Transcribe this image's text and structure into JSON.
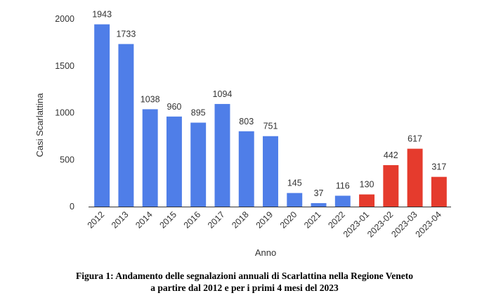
{
  "chart_data": {
    "type": "bar",
    "categories": [
      "2012",
      "2013",
      "2014",
      "2015",
      "2016",
      "2017",
      "2018",
      "2019",
      "2020",
      "2021",
      "2022",
      "2023-01",
      "2023-02",
      "2023-03",
      "2023-04"
    ],
    "values": [
      1943,
      1733,
      1038,
      960,
      895,
      1094,
      803,
      751,
      145,
      37,
      116,
      130,
      442,
      617,
      317
    ],
    "bar_colors": [
      "#4f7ee8",
      "#4f7ee8",
      "#4f7ee8",
      "#4f7ee8",
      "#4f7ee8",
      "#4f7ee8",
      "#4f7ee8",
      "#4f7ee8",
      "#4f7ee8",
      "#4f7ee8",
      "#4f7ee8",
      "#e53b2d",
      "#e53b2d",
      "#e53b2d",
      "#e53b2d"
    ],
    "xlabel": "Anno",
    "ylabel": "Casi Scarlattina",
    "ylim": [
      0,
      2000
    ],
    "yticks": [
      0,
      500,
      1000,
      1500,
      2000
    ],
    "grid": false,
    "data_labels": true,
    "x_tick_rotation": "diagonal"
  },
  "caption": {
    "line1": "Figura 1: Andamento delle segnalazioni annuali di Scarlattina nella Regione Veneto",
    "line2": "a partire dal 2012 e per i primi 4 mesi del 2023"
  }
}
